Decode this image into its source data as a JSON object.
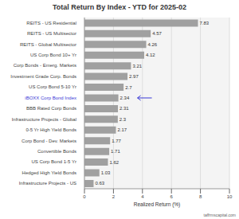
{
  "chart_data": {
    "type": "bar",
    "title": "Total Return By Index - YTD for 2025-02",
    "x_label": "Realized Return (%)",
    "categories": [
      "REITS - US Residential",
      "REITS - US Multisector",
      "REITS - Global Multisector",
      "US Corp Bond 10+ Yr",
      "Corp Bonds - Emerg. Markets",
      "Investment Grade Corp. Bonds",
      "US Corp Bond 5-10 Yr",
      "iBOXX Corp Bond Index",
      "BBB Rated Corp Bonds",
      "Infrastructure Projects - Global",
      "0-5 Yr High Yield Bonds",
      "Corp Bond - Dev. Markets",
      "Convertible Bonds",
      "US Corp Bond 1-5 Yr",
      "Hedged High Yield Bonds",
      "Infrastructure Projects - US"
    ],
    "values": [
      7.83,
      4.57,
      4.26,
      4.12,
      3.21,
      2.97,
      2.7,
      2.34,
      2.31,
      2.3,
      2.17,
      1.77,
      1.71,
      1.62,
      1.03,
      0.63
    ],
    "color": "#a0a0a0",
    "orientation": "horizontal",
    "xlim": [
      0,
      10
    ],
    "xticks": [
      0,
      2,
      4,
      6,
      8,
      10
    ],
    "grid": true,
    "data_labels": true,
    "annotations": [
      "taffrmscapital.com"
    ]
  }
}
